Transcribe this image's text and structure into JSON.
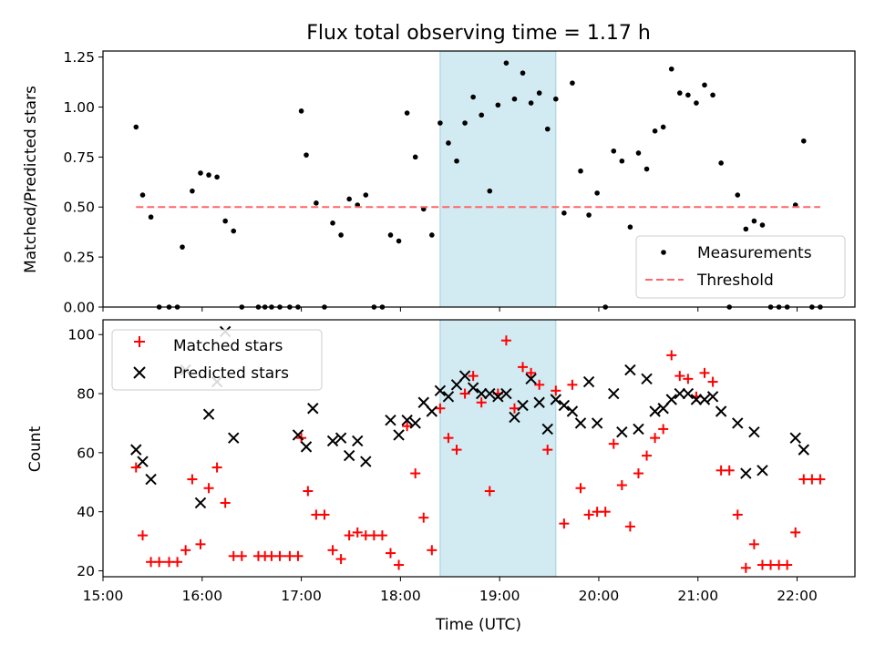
{
  "chart_data": [
    {
      "type": "scatter",
      "title": "Flux total observing time = 1.17 h",
      "xlabel": "",
      "ylabel": "Matched/Predicted stars",
      "xlim": [
        "15:00",
        "22:35"
      ],
      "ylim": [
        0,
        1.28
      ],
      "yticks": [
        "0.00",
        "0.25",
        "0.50",
        "0.75",
        "1.00",
        "1.25"
      ],
      "xticks": [
        "15:00",
        "16:00",
        "17:00",
        "18:00",
        "19:00",
        "20:00",
        "21:00",
        "22:00"
      ],
      "highlight_span": {
        "x": [
          "18:24",
          "19:34"
        ],
        "color": "#add8e6"
      },
      "legend_position": "lower right",
      "series": [
        {
          "name": "Measurements",
          "marker": "dot",
          "color": "#000000",
          "points": [
            [
              "15:20",
              0.9
            ],
            [
              "15:24",
              0.56
            ],
            [
              "15:29",
              0.45
            ],
            [
              "15:34",
              0.0
            ],
            [
              "15:40",
              0.0
            ],
            [
              "15:45",
              0.0
            ],
            [
              "15:48",
              0.3
            ],
            [
              "15:54",
              0.58
            ],
            [
              "15:59",
              0.67
            ],
            [
              "16:04",
              0.66
            ],
            [
              "16:09",
              0.65
            ],
            [
              "16:14",
              0.43
            ],
            [
              "16:19",
              0.38
            ],
            [
              "16:24",
              0.0
            ],
            [
              "16:34",
              0.0
            ],
            [
              "16:38",
              0.0
            ],
            [
              "16:42",
              0.0
            ],
            [
              "16:47",
              0.0
            ],
            [
              "16:53",
              0.0
            ],
            [
              "16:58",
              0.0
            ],
            [
              "17:00",
              0.98
            ],
            [
              "17:03",
              0.76
            ],
            [
              "17:09",
              0.52
            ],
            [
              "17:14",
              0.0
            ],
            [
              "17:19",
              0.42
            ],
            [
              "17:24",
              0.36
            ],
            [
              "17:29",
              0.54
            ],
            [
              "17:34",
              0.51
            ],
            [
              "17:39",
              0.56
            ],
            [
              "17:44",
              0.0
            ],
            [
              "17:49",
              0.0
            ],
            [
              "17:54",
              0.36
            ],
            [
              "17:59",
              0.33
            ],
            [
              "18:04",
              0.97
            ],
            [
              "18:09",
              0.75
            ],
            [
              "18:14",
              0.49
            ],
            [
              "18:19",
              0.36
            ],
            [
              "18:24",
              0.92
            ],
            [
              "18:29",
              0.82
            ],
            [
              "18:34",
              0.73
            ],
            [
              "18:39",
              0.92
            ],
            [
              "18:44",
              1.05
            ],
            [
              "18:49",
              0.96
            ],
            [
              "18:54",
              0.58
            ],
            [
              "18:59",
              1.01
            ],
            [
              "19:04",
              1.22
            ],
            [
              "19:09",
              1.04
            ],
            [
              "19:14",
              1.17
            ],
            [
              "19:19",
              1.02
            ],
            [
              "19:24",
              1.07
            ],
            [
              "19:29",
              0.89
            ],
            [
              "19:34",
              1.04
            ],
            [
              "19:39",
              0.47
            ],
            [
              "19:44",
              1.12
            ],
            [
              "19:49",
              0.68
            ],
            [
              "19:54",
              0.46
            ],
            [
              "19:59",
              0.57
            ],
            [
              "20:04",
              0.0
            ],
            [
              "20:09",
              0.78
            ],
            [
              "20:14",
              0.73
            ],
            [
              "20:19",
              0.4
            ],
            [
              "20:24",
              0.77
            ],
            [
              "20:29",
              0.69
            ],
            [
              "20:34",
              0.88
            ],
            [
              "20:39",
              0.9
            ],
            [
              "20:44",
              1.19
            ],
            [
              "20:49",
              1.07
            ],
            [
              "20:54",
              1.06
            ],
            [
              "20:59",
              1.02
            ],
            [
              "21:04",
              1.11
            ],
            [
              "21:09",
              1.06
            ],
            [
              "21:14",
              0.72
            ],
            [
              "21:19",
              0.0
            ],
            [
              "21:24",
              0.56
            ],
            [
              "21:29",
              0.39
            ],
            [
              "21:34",
              0.43
            ],
            [
              "21:39",
              0.41
            ],
            [
              "21:44",
              0.0
            ],
            [
              "21:49",
              0.0
            ],
            [
              "21:54",
              0.0
            ],
            [
              "21:59",
              0.51
            ],
            [
              "22:04",
              0.83
            ],
            [
              "22:09",
              0.0
            ],
            [
              "22:14",
              0.0
            ]
          ]
        },
        {
          "name": "Threshold",
          "marker": "dashed-line",
          "color": "#ff6666",
          "points": [
            [
              "15:20",
              0.5
            ],
            [
              "22:14",
              0.5
            ]
          ]
        }
      ]
    },
    {
      "type": "scatter",
      "title": "",
      "xlabel": "Time (UTC)",
      "ylabel": "Count",
      "xlim": [
        "15:00",
        "22:35"
      ],
      "ylim": [
        18,
        105
      ],
      "yticks": [
        "20",
        "40",
        "60",
        "80",
        "100"
      ],
      "xticks": [
        "15:00",
        "16:00",
        "17:00",
        "18:00",
        "19:00",
        "20:00",
        "21:00",
        "22:00"
      ],
      "highlight_span": {
        "x": [
          "18:24",
          "19:34"
        ],
        "color": "#add8e6"
      },
      "legend_position": "upper left",
      "series": [
        {
          "name": "Matched stars",
          "marker": "plus",
          "color": "#ff0000",
          "points": [
            [
              "15:20",
              55
            ],
            [
              "15:24",
              32
            ],
            [
              "15:29",
              23
            ],
            [
              "15:34",
              23
            ],
            [
              "15:40",
              23
            ],
            [
              "15:45",
              23
            ],
            [
              "15:50",
              27
            ],
            [
              "15:54",
              51
            ],
            [
              "15:59",
              29
            ],
            [
              "16:04",
              48
            ],
            [
              "16:09",
              55
            ],
            [
              "16:14",
              43
            ],
            [
              "16:19",
              25
            ],
            [
              "16:24",
              25
            ],
            [
              "16:34",
              25
            ],
            [
              "16:38",
              25
            ],
            [
              "16:42",
              25
            ],
            [
              "16:47",
              25
            ],
            [
              "16:53",
              25
            ],
            [
              "16:58",
              25
            ],
            [
              "17:00",
              65
            ],
            [
              "17:04",
              47
            ],
            [
              "17:09",
              39
            ],
            [
              "17:14",
              39
            ],
            [
              "17:19",
              27
            ],
            [
              "17:24",
              24
            ],
            [
              "17:29",
              32
            ],
            [
              "17:34",
              33
            ],
            [
              "17:39",
              32
            ],
            [
              "17:44",
              32
            ],
            [
              "17:49",
              32
            ],
            [
              "17:54",
              26
            ],
            [
              "17:59",
              22
            ],
            [
              "18:04",
              69
            ],
            [
              "18:09",
              53
            ],
            [
              "18:14",
              38
            ],
            [
              "18:19",
              27
            ],
            [
              "18:24",
              75
            ],
            [
              "18:29",
              65
            ],
            [
              "18:34",
              61
            ],
            [
              "18:39",
              80
            ],
            [
              "18:44",
              86
            ],
            [
              "18:49",
              77
            ],
            [
              "18:54",
              47
            ],
            [
              "18:59",
              80
            ],
            [
              "19:04",
              98
            ],
            [
              "19:09",
              75
            ],
            [
              "19:14",
              89
            ],
            [
              "19:19",
              87
            ],
            [
              "19:24",
              83
            ],
            [
              "19:29",
              61
            ],
            [
              "19:34",
              81
            ],
            [
              "19:39",
              36
            ],
            [
              "19:44",
              83
            ],
            [
              "19:49",
              48
            ],
            [
              "19:54",
              39
            ],
            [
              "19:59",
              40
            ],
            [
              "20:04",
              40
            ],
            [
              "20:09",
              63
            ],
            [
              "20:14",
              49
            ],
            [
              "20:19",
              35
            ],
            [
              "20:24",
              53
            ],
            [
              "20:29",
              59
            ],
            [
              "20:34",
              65
            ],
            [
              "20:39",
              68
            ],
            [
              "20:44",
              93
            ],
            [
              "20:49",
              86
            ],
            [
              "20:54",
              85
            ],
            [
              "20:59",
              79
            ],
            [
              "21:04",
              87
            ],
            [
              "21:09",
              84
            ],
            [
              "21:14",
              54
            ],
            [
              "21:19",
              54
            ],
            [
              "21:24",
              39
            ],
            [
              "21:29",
              21
            ],
            [
              "21:34",
              29
            ],
            [
              "21:39",
              22
            ],
            [
              "21:44",
              22
            ],
            [
              "21:49",
              22
            ],
            [
              "21:54",
              22
            ],
            [
              "21:59",
              33
            ],
            [
              "22:04",
              51
            ],
            [
              "22:09",
              51
            ],
            [
              "22:14",
              51
            ]
          ]
        },
        {
          "name": "Predicted stars",
          "marker": "x",
          "color": "#000000",
          "points": [
            [
              "15:20",
              61
            ],
            [
              "15:24",
              57
            ],
            [
              "15:29",
              51
            ],
            [
              "15:50",
              88
            ],
            [
              "15:59",
              43
            ],
            [
              "16:04",
              73
            ],
            [
              "16:09",
              84
            ],
            [
              "16:14",
              101
            ],
            [
              "16:19",
              65
            ],
            [
              "16:58",
              66
            ],
            [
              "17:03",
              62
            ],
            [
              "17:07",
              75
            ],
            [
              "17:19",
              64
            ],
            [
              "17:24",
              65
            ],
            [
              "17:29",
              59
            ],
            [
              "17:34",
              64
            ],
            [
              "17:39",
              57
            ],
            [
              "17:54",
              71
            ],
            [
              "17:59",
              66
            ],
            [
              "18:04",
              71
            ],
            [
              "18:09",
              70
            ],
            [
              "18:14",
              77
            ],
            [
              "18:19",
              74
            ],
            [
              "18:24",
              81
            ],
            [
              "18:29",
              79
            ],
            [
              "18:34",
              83
            ],
            [
              "18:39",
              86
            ],
            [
              "18:44",
              82
            ],
            [
              "18:49",
              80
            ],
            [
              "18:54",
              80
            ],
            [
              "18:59",
              79
            ],
            [
              "19:04",
              80
            ],
            [
              "19:09",
              72
            ],
            [
              "19:14",
              76
            ],
            [
              "19:19",
              85
            ],
            [
              "19:24",
              77
            ],
            [
              "19:29",
              68
            ],
            [
              "19:34",
              78
            ],
            [
              "19:39",
              76
            ],
            [
              "19:44",
              74
            ],
            [
              "19:49",
              70
            ],
            [
              "19:54",
              84
            ],
            [
              "19:59",
              70
            ],
            [
              "20:09",
              80
            ],
            [
              "20:14",
              67
            ],
            [
              "20:19",
              88
            ],
            [
              "20:24",
              68
            ],
            [
              "20:29",
              85
            ],
            [
              "20:34",
              74
            ],
            [
              "20:39",
              75
            ],
            [
              "20:44",
              78
            ],
            [
              "20:49",
              80
            ],
            [
              "20:54",
              80
            ],
            [
              "20:59",
              78
            ],
            [
              "21:04",
              78
            ],
            [
              "21:09",
              79
            ],
            [
              "21:14",
              74
            ],
            [
              "21:24",
              70
            ],
            [
              "21:29",
              53
            ],
            [
              "21:34",
              67
            ],
            [
              "21:39",
              54
            ],
            [
              "21:59",
              65
            ],
            [
              "22:04",
              61
            ]
          ]
        }
      ]
    }
  ]
}
